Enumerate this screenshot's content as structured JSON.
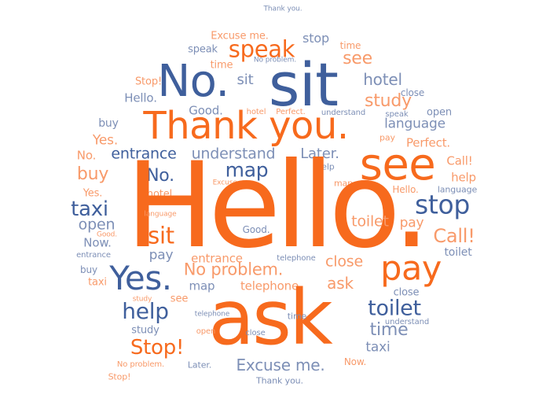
{
  "colors": {
    "deep_orange": "#f76a1d",
    "light_orange": "#f89a6a",
    "deep_blue": "#3f5f9c",
    "slate_blue": "#7d8fb6"
  },
  "words": [
    "Hello.",
    "ask",
    "Thank you.",
    "sit",
    "No.",
    "see",
    "pay",
    "stop",
    "Yes.",
    "Excuse me.",
    "toilet",
    "time",
    "help",
    "Stop!",
    "map",
    "buy",
    "taxi",
    "open",
    "No problem.",
    "speak",
    "study",
    "hotel",
    "language",
    "close",
    "Call!",
    "entrance",
    "understand",
    "Later.",
    "Good.",
    "Perfect.",
    "telephone",
    "Now."
  ]
}
